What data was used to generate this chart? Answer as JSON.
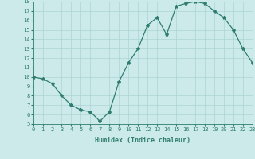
{
  "x": [
    0,
    1,
    2,
    3,
    4,
    5,
    6,
    7,
    8,
    9,
    10,
    11,
    12,
    13,
    14,
    15,
    16,
    17,
    18,
    19,
    20,
    21,
    22,
    23
  ],
  "y": [
    10.0,
    9.8,
    9.3,
    8.0,
    7.0,
    6.5,
    6.3,
    5.3,
    6.3,
    9.5,
    11.5,
    13.0,
    15.5,
    16.3,
    14.5,
    17.5,
    17.8,
    18.0,
    17.8,
    17.0,
    16.3,
    15.0,
    13.0,
    11.5
  ],
  "line_color": "#2e7d6e",
  "marker": "*",
  "marker_size": 3.0,
  "bg_color": "#cceaea",
  "grid_color": "#aad4d4",
  "xlabel": "Humidex (Indice chaleur)",
  "ylabel_ticks": [
    5,
    6,
    7,
    8,
    9,
    10,
    11,
    12,
    13,
    14,
    15,
    16,
    17,
    18
  ],
  "xlim": [
    0,
    23
  ],
  "ylim": [
    5,
    18
  ],
  "tick_color": "#2e7d6e",
  "font_family": "monospace",
  "tick_fontsize": 5.0,
  "xlabel_fontsize": 6.0,
  "linewidth": 0.9
}
